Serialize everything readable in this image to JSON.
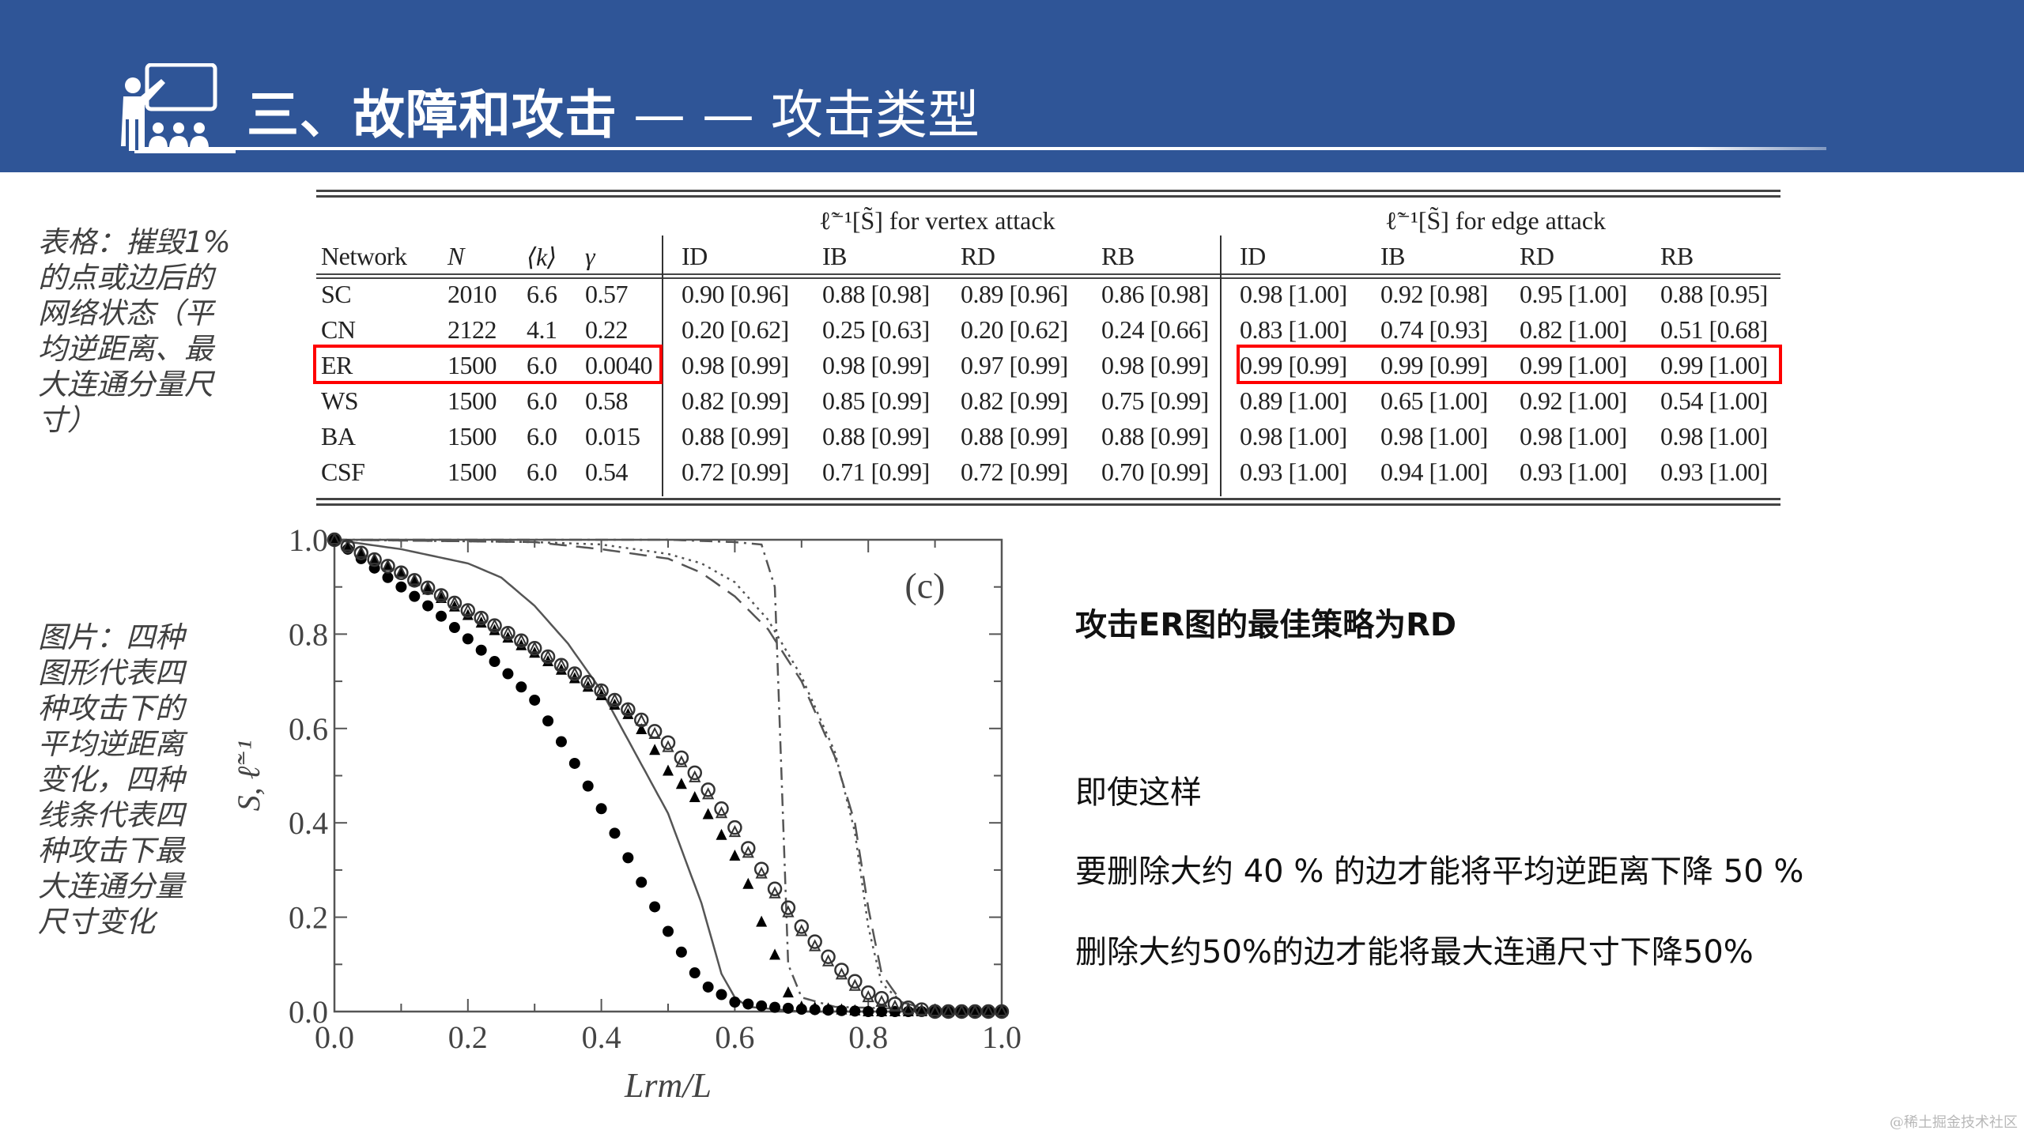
{
  "header": {
    "title_bold": "三、故障和攻击",
    "title_light": "— — 攻击类型",
    "icon": "presenter-teaching-icon",
    "background_color": "#2f5597"
  },
  "side_notes": {
    "table_note": "表格：摧毁1%的点或边后的网络状态（平均逆距离、最大连通分量尺寸）",
    "figure_note": "图片：四种图形代表四种攻击下的平均逆距离变化，四种线条代表四种攻击下最大连通分量尺寸变化"
  },
  "table": {
    "group_headers": {
      "vertex": "ℓ̃⁻¹[S̃] for vertex attack",
      "edge": "ℓ̃⁻¹[S̃] for edge attack"
    },
    "columns": [
      "Network",
      "N",
      "⟨k⟩",
      "γ",
      "ID",
      "IB",
      "RD",
      "RB",
      "ID",
      "IB",
      "RD",
      "RB"
    ],
    "rows": [
      {
        "network": "SC",
        "N": "2010",
        "k": "6.6",
        "gamma": "0.57",
        "v_ID": "0.90 [0.96]",
        "v_IB": "0.88 [0.98]",
        "v_RD": "0.89 [0.96]",
        "v_RB": "0.86 [0.98]",
        "e_ID": "0.98 [1.00]",
        "e_IB": "0.92 [0.98]",
        "e_RD": "0.95 [1.00]",
        "e_RB": "0.88 [0.95]"
      },
      {
        "network": "CN",
        "N": "2122",
        "k": "4.1",
        "gamma": "0.22",
        "v_ID": "0.20 [0.62]",
        "v_IB": "0.25 [0.63]",
        "v_RD": "0.20 [0.62]",
        "v_RB": "0.24 [0.66]",
        "e_ID": "0.83 [1.00]",
        "e_IB": "0.74 [0.93]",
        "e_RD": "0.82 [1.00]",
        "e_RB": "0.51 [0.68]"
      },
      {
        "network": "ER",
        "N": "1500",
        "k": "6.0",
        "gamma": "0.0040",
        "v_ID": "0.98 [0.99]",
        "v_IB": "0.98 [0.99]",
        "v_RD": "0.97 [0.99]",
        "v_RB": "0.98 [0.99]",
        "e_ID": "0.99 [0.99]",
        "e_IB": "0.99 [0.99]",
        "e_RD": "0.99 [1.00]",
        "e_RB": "0.99 [1.00]"
      },
      {
        "network": "WS",
        "N": "1500",
        "k": "6.0",
        "gamma": "0.58",
        "v_ID": "0.82 [0.99]",
        "v_IB": "0.85 [0.99]",
        "v_RD": "0.82 [0.99]",
        "v_RB": "0.75 [0.99]",
        "e_ID": "0.89 [1.00]",
        "e_IB": "0.65 [1.00]",
        "e_RD": "0.92 [1.00]",
        "e_RB": "0.54 [1.00]"
      },
      {
        "network": "BA",
        "N": "1500",
        "k": "6.0",
        "gamma": "0.015",
        "v_ID": "0.88 [0.99]",
        "v_IB": "0.88 [0.99]",
        "v_RD": "0.88 [0.99]",
        "v_RB": "0.88 [0.99]",
        "e_ID": "0.98 [1.00]",
        "e_IB": "0.98 [1.00]",
        "e_RD": "0.98 [1.00]",
        "e_RB": "0.98 [1.00]"
      },
      {
        "network": "CSF",
        "N": "1500",
        "k": "6.0",
        "gamma": "0.54",
        "v_ID": "0.72 [0.99]",
        "v_IB": "0.71 [0.99]",
        "v_RD": "0.72 [0.99]",
        "v_RB": "0.70 [0.99]",
        "e_ID": "0.93 [1.00]",
        "e_IB": "0.94 [1.00]",
        "e_RD": "0.93 [1.00]",
        "e_RB": "0.93 [1.00]"
      }
    ],
    "highlight": {
      "row": "ER",
      "color": "#ff0000",
      "boxes": [
        "network-params",
        "edge-attack-values"
      ]
    }
  },
  "chart": {
    "panel_label": "(c)",
    "xlabel": "Lrm/L",
    "ylabel": "S̃, ℓ̃⁻¹",
    "x_ticks": [
      "0.0",
      "0.2",
      "0.4",
      "0.6",
      "0.8",
      "1.0"
    ],
    "y_ticks": [
      "0.0",
      "0.2",
      "0.4",
      "0.6",
      "0.8",
      "1.0"
    ]
  },
  "chart_data": {
    "type": "scatter",
    "title": "(c)",
    "xlabel": "L_rm/L",
    "ylabel": "S̃, ℓ̃⁻¹",
    "xlim": [
      0,
      1
    ],
    "ylim": [
      0,
      1
    ],
    "grid": false,
    "legend": "none",
    "series": [
      {
        "name": "inverse distance – filled circles",
        "marker": "filled-circle",
        "x": [
          0.0,
          0.05,
          0.1,
          0.15,
          0.2,
          0.25,
          0.3,
          0.35,
          0.4,
          0.45,
          0.5,
          0.55,
          0.6,
          0.65,
          0.7,
          0.8,
          0.9,
          1.0
        ],
        "y": [
          1.0,
          0.95,
          0.9,
          0.85,
          0.79,
          0.73,
          0.66,
          0.55,
          0.43,
          0.3,
          0.17,
          0.06,
          0.02,
          0.01,
          0.005,
          0.0,
          0.0,
          0.0
        ]
      },
      {
        "name": "inverse distance – filled triangles",
        "marker": "filled-triangle",
        "x": [
          0.0,
          0.1,
          0.2,
          0.3,
          0.4,
          0.45,
          0.5,
          0.55,
          0.6,
          0.62,
          0.64,
          0.66,
          0.68,
          0.7,
          0.8,
          0.9,
          1.0
        ],
        "y": [
          1.0,
          0.93,
          0.84,
          0.76,
          0.67,
          0.62,
          0.51,
          0.44,
          0.33,
          0.27,
          0.19,
          0.12,
          0.04,
          0.01,
          0.0,
          0.0,
          0.0
        ]
      },
      {
        "name": "inverse distance – open triangles",
        "marker": "open-triangle",
        "x": [
          0.0,
          0.1,
          0.2,
          0.3,
          0.4,
          0.45,
          0.5,
          0.55,
          0.6,
          0.65,
          0.7,
          0.75,
          0.8,
          0.85,
          0.9,
          1.0
        ],
        "y": [
          1.0,
          0.93,
          0.85,
          0.77,
          0.68,
          0.63,
          0.56,
          0.48,
          0.38,
          0.27,
          0.17,
          0.09,
          0.03,
          0.005,
          0.0,
          0.0
        ]
      },
      {
        "name": "inverse distance – open circles",
        "marker": "open-circle",
        "x": [
          0.0,
          0.1,
          0.2,
          0.3,
          0.4,
          0.45,
          0.5,
          0.55,
          0.6,
          0.65,
          0.7,
          0.75,
          0.8,
          0.85,
          0.9,
          1.0
        ],
        "y": [
          1.0,
          0.93,
          0.85,
          0.77,
          0.68,
          0.63,
          0.57,
          0.49,
          0.39,
          0.28,
          0.18,
          0.1,
          0.04,
          0.01,
          0.0,
          0.0
        ]
      },
      {
        "name": "giant component – solid line",
        "line": "solid",
        "x": [
          0.0,
          0.1,
          0.2,
          0.25,
          0.3,
          0.35,
          0.4,
          0.45,
          0.5,
          0.55,
          0.58,
          0.6,
          0.62,
          0.7,
          1.0
        ],
        "y": [
          1.0,
          0.98,
          0.95,
          0.92,
          0.86,
          0.78,
          0.68,
          0.55,
          0.42,
          0.23,
          0.08,
          0.03,
          0.01,
          0.0,
          0.0
        ]
      },
      {
        "name": "giant component – dash-dot line",
        "line": "dash-dot",
        "x": [
          0.0,
          0.5,
          0.6,
          0.64,
          0.66,
          0.67,
          0.68,
          0.7,
          0.75,
          1.0
        ],
        "y": [
          1.0,
          1.0,
          0.995,
          0.99,
          0.9,
          0.5,
          0.1,
          0.03,
          0.01,
          0.0
        ]
      },
      {
        "name": "giant component – dashed line",
        "line": "dashed",
        "x": [
          0.0,
          0.3,
          0.4,
          0.5,
          0.55,
          0.6,
          0.65,
          0.7,
          0.75,
          0.78,
          0.8,
          0.82,
          0.85,
          0.9,
          1.0
        ],
        "y": [
          1.0,
          0.995,
          0.98,
          0.96,
          0.93,
          0.88,
          0.81,
          0.7,
          0.54,
          0.4,
          0.22,
          0.08,
          0.02,
          0.0,
          0.0
        ]
      },
      {
        "name": "giant component – dotted line",
        "line": "dotted",
        "x": [
          0.0,
          0.3,
          0.4,
          0.5,
          0.55,
          0.6,
          0.65,
          0.7,
          0.75,
          0.78,
          0.8,
          0.82,
          0.85,
          0.9,
          1.0
        ],
        "y": [
          1.0,
          0.995,
          0.99,
          0.97,
          0.95,
          0.91,
          0.83,
          0.71,
          0.55,
          0.38,
          0.18,
          0.06,
          0.02,
          0.0,
          0.0
        ]
      }
    ]
  },
  "right_panel": {
    "heading": "攻击ER图的最佳策略为RD",
    "line1": "即使这样",
    "line2": "要删除大约 40 % 的边才能将平均逆距离下降 50 %",
    "line3": "删除大约50%的边才能将最大连通尺寸下降50%"
  },
  "watermark": "@稀土掘金技术社区"
}
